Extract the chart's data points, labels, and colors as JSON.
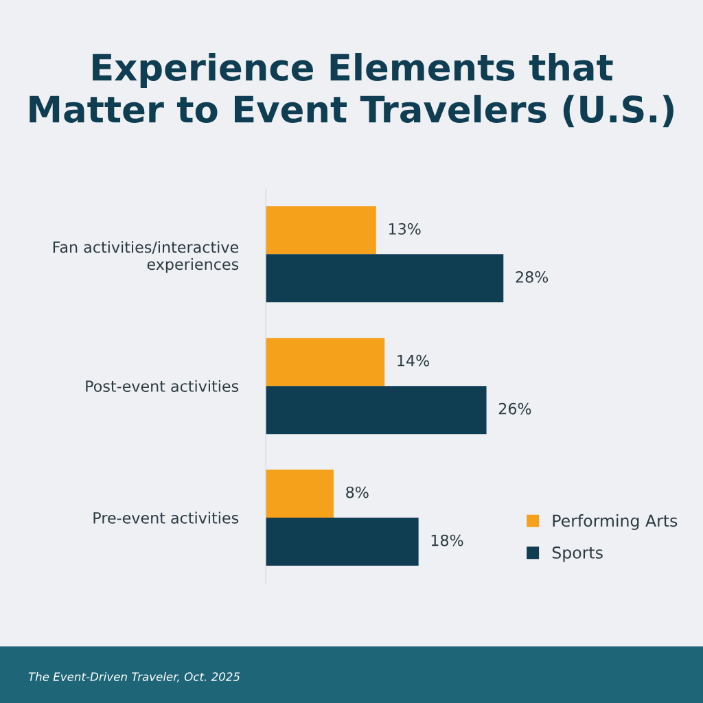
{
  "chart_data": {
    "type": "bar",
    "orientation": "horizontal",
    "title": "Experience Elements that\nMatter to Event Travelers (U.S.)",
    "categories": [
      "Fan activities/interactive\nexperiences",
      "Post-event activities",
      "Pre-event activities"
    ],
    "series": [
      {
        "name": "Performing Arts",
        "color": "#f5a11c",
        "values": [
          13,
          14,
          8
        ],
        "value_labels": [
          "13%",
          "14%",
          "8%"
        ]
      },
      {
        "name": "Sports",
        "color": "#0f3d52",
        "values": [
          28,
          26,
          18
        ],
        "value_labels": [
          "28%",
          "26%",
          "18%"
        ]
      }
    ],
    "tick_labels": "y",
    "grid": false,
    "legend": "bottom right",
    "annotations": [
      "The Event-Driven Traveler, Oct. 2025"
    ]
  }
}
